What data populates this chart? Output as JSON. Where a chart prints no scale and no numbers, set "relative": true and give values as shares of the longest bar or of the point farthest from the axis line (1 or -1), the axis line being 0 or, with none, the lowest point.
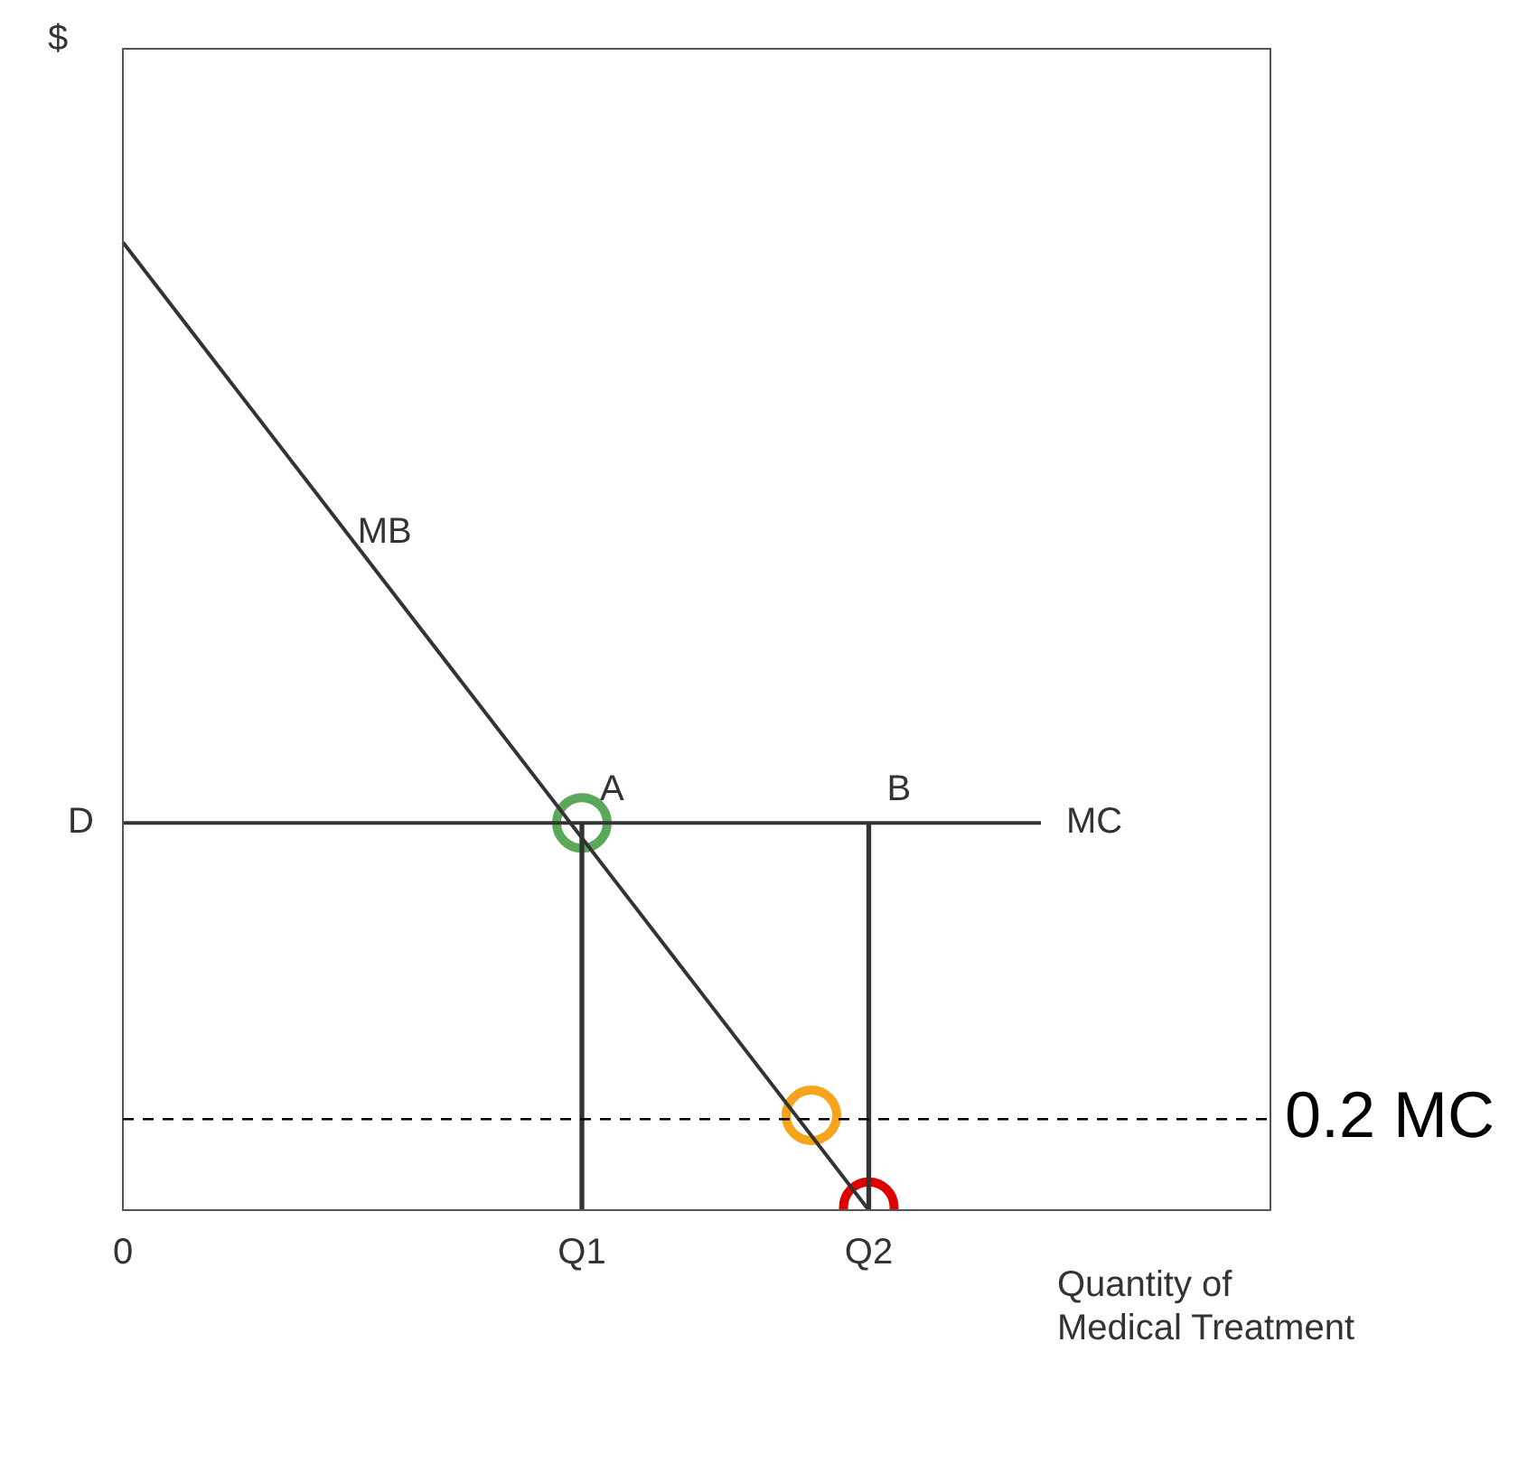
{
  "chart_data": {
    "type": "line",
    "relative": true,
    "xlabel": "Quantity of\nMedical Treatment",
    "legend": false,
    "marker": "none",
    "categories": [
      "0",
      null,
      null,
      null,
      null,
      null,
      null,
      null,
      "Q1",
      null,
      null,
      null,
      null,
      "Q2",
      null,
      null,
      null,
      null,
      null,
      null,
      null
    ],
    "series": [
      {
        "name": "MB",
        "color": "#333333",
        "values": [
          1,
          null,
          null,
          null,
          null,
          null,
          null,
          null,
          null,
          null,
          null,
          null,
          null,
          0,
          null,
          null,
          null,
          null,
          null,
          null,
          null
        ]
      },
      {
        "name": "MC",
        "color": "#333333",
        "values": [
          0.4,
          null,
          null,
          null,
          null,
          null,
          null,
          null,
          null,
          null,
          null,
          null,
          null,
          null,
          null,
          null,
          0.4,
          null,
          null,
          null,
          null
        ]
      },
      {
        "type": "bar",
        "color": "#333333",
        "values": [
          null,
          null,
          null,
          null,
          null,
          null,
          null,
          null,
          0.4,
          null,
          null,
          null,
          null,
          0.4,
          null,
          null,
          null,
          null,
          null,
          null,
          null
        ]
      },
      {
        "type": "scatter",
        "marker": "circle",
        "color": "#5aa85a",
        "values": [
          null,
          null,
          null,
          null,
          null,
          null,
          null,
          null,
          0.4,
          null,
          null,
          null,
          null,
          null,
          null,
          null,
          null,
          null,
          null,
          null,
          null
        ]
      },
      {
        "type": "scatter",
        "marker": "circle",
        "color": "#f5a41c",
        "values": [
          null,
          null,
          null,
          null,
          null,
          null,
          null,
          null,
          null,
          null,
          null,
          null,
          0.098,
          null,
          null,
          null,
          null,
          null,
          null,
          null,
          null
        ]
      },
      {
        "type": "scatter",
        "marker": "circle",
        "color": "#e00000",
        "values": [
          null,
          null,
          null,
          null,
          null,
          null,
          null,
          null,
          null,
          null,
          null,
          null,
          null,
          0.003,
          null,
          null,
          null,
          null,
          null,
          null,
          null
        ]
      }
    ],
    "ref_lines": [
      {
        "axis": "y",
        "value": 0.094,
        "label": "0.2 MC",
        "line_style": "dashed",
        "color": "#000000"
      }
    ],
    "annotations": [
      "$",
      "D",
      {
        "text": "A",
        "x": "Q1",
        "y": 0.4
      },
      {
        "text": "B",
        "x": "Q2",
        "y": 0.4
      }
    ]
  }
}
